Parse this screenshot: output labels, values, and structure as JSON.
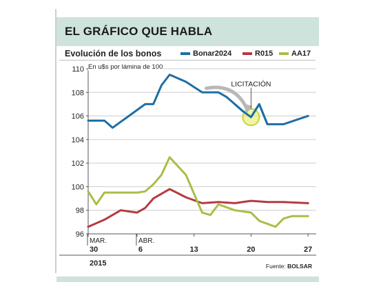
{
  "header": {
    "title": "EL GRÁFICO QUE HABLA",
    "subtitle": "Evolución de los bonos",
    "note": "En u$s por lámina de 100",
    "source_label": "Fuente:",
    "source_name": "BOLSAR"
  },
  "chart_data": {
    "type": "line",
    "title": "Evolución de los bonos",
    "ylabel": "En u$s por lámina de 100",
    "ylim": [
      96,
      110
    ],
    "y_ticks": [
      "96",
      "98",
      "100",
      "102",
      "104",
      "106",
      "108",
      "110"
    ],
    "x_ticks": [
      {
        "month": "MAR.",
        "day": "30"
      },
      {
        "month": "ABR.",
        "day": "6"
      },
      {
        "month": "",
        "day": "13"
      },
      {
        "month": "",
        "day": "20"
      },
      {
        "month": "",
        "day": "27"
      }
    ],
    "x_tick_index": [
      0,
      6,
      13,
      20,
      27
    ],
    "year_label": "2015",
    "annotation": {
      "label": "LICITACIÓN",
      "index": 20,
      "value": 105.9
    },
    "legend_position": "top-right",
    "grid": true,
    "series": [
      {
        "name": "Bonar2024",
        "color": "#1e6ea4",
        "x": [
          0,
          2,
          3,
          4,
          5,
          6,
          7,
          8,
          9,
          10,
          12,
          14,
          16,
          17,
          18,
          19,
          20,
          21,
          22,
          24,
          27
        ],
        "values": [
          105.6,
          105.6,
          105.0,
          105.5,
          106.0,
          106.5,
          107.0,
          107.0,
          108.6,
          109.5,
          108.9,
          108.0,
          108.0,
          107.6,
          107.0,
          106.4,
          105.9,
          107.0,
          105.3,
          105.3,
          106.0
        ]
      },
      {
        "name": "R015",
        "color": "#b53a3f",
        "x": [
          0,
          2,
          4,
          6,
          7,
          8,
          10,
          12,
          14,
          16,
          18,
          20,
          22,
          24,
          27
        ],
        "values": [
          96.6,
          97.2,
          98.0,
          97.8,
          98.2,
          99.0,
          99.8,
          99.1,
          98.6,
          98.7,
          98.6,
          98.8,
          98.7,
          98.7,
          98.6
        ]
      },
      {
        "name": "AA17",
        "color": "#a6bf45",
        "x": [
          0,
          1,
          2,
          4,
          6,
          7,
          8,
          9,
          10,
          12,
          14,
          15,
          16,
          18,
          20,
          21,
          23,
          24,
          25,
          27
        ],
        "values": [
          99.6,
          98.5,
          99.5,
          99.5,
          99.5,
          99.6,
          100.2,
          101.0,
          102.5,
          101.0,
          97.8,
          97.6,
          98.5,
          98.0,
          97.8,
          97.1,
          96.6,
          97.3,
          97.5,
          97.5
        ]
      }
    ]
  }
}
